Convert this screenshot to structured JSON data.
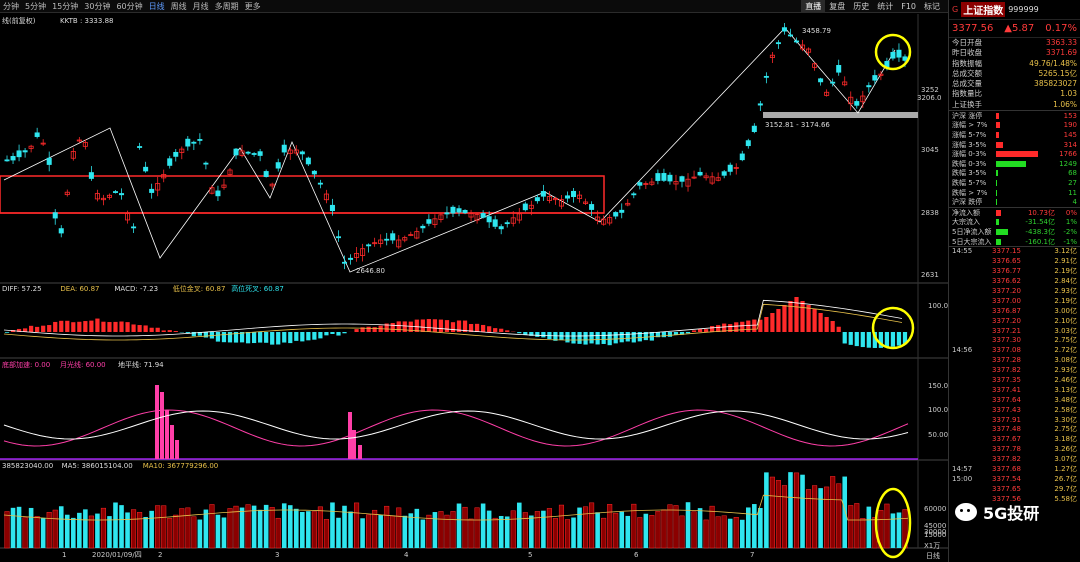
{
  "toolbar": {
    "periods": [
      "分钟",
      "5分钟",
      "15分钟",
      "30分钟",
      "60分钟",
      "日线",
      "周线",
      "月线",
      "多周期",
      "更多"
    ],
    "active_period": "日线",
    "tools": [
      "直播",
      "复盘",
      "历史",
      "统计",
      "F10",
      "标记"
    ]
  },
  "main": {
    "title_label": "线(前复权)",
    "ma_label": "KKTB : 3333.88",
    "right_axis": [
      "3252",
      "3206.0",
      "3045",
      "2838",
      "2631"
    ],
    "annotations": {
      "high": "3458.79",
      "low": "2646.80",
      "range": "3152.81 - 3174.66"
    }
  },
  "macd": {
    "legend": [
      "DIFF: 57.25",
      "DEA: 60.87",
      "MACD: -7.23",
      "低位金叉: 60.87",
      "高位死叉: 60.87"
    ],
    "axis": [
      "100.0"
    ]
  },
  "ind2": {
    "legend": [
      "底部加速: 0.00",
      "月光线: 60.00",
      "地平线: 71.94"
    ],
    "axis": [
      "150.0",
      "100.0",
      "50.00"
    ]
  },
  "vol": {
    "legend": [
      "385823040.00",
      "MA5: 386015104.00",
      "MA10: 367779296.00"
    ],
    "axis": [
      "60000",
      "45000",
      "30000",
      "15000",
      "X1万"
    ],
    "dates": [
      "1",
      "2020/01/09/四",
      "2",
      "3",
      "4",
      "5",
      "6",
      "7"
    ],
    "bottom_right": "日线"
  },
  "quote": {
    "g": "G",
    "name": "上证指数",
    "code": "999999",
    "price": "3377.56",
    "change": "▲5.87",
    "pct": "0.17%",
    "rows": [
      {
        "l": "今日开盘",
        "v": "3363.33"
      },
      {
        "l": "昨日收盘",
        "v": "3371.69"
      },
      {
        "l": "指数振幅",
        "v": "49.76/1.48%"
      },
      {
        "l": "总成交额",
        "v": "5265.15亿"
      },
      {
        "l": "总成交量",
        "v": "385823027"
      },
      {
        "l": "指数量比",
        "v": "1.03"
      },
      {
        "l": "上证换手",
        "v": "1.06%"
      }
    ],
    "dist": [
      {
        "l": "沪深 涨停",
        "v": "153",
        "w": 3,
        "c": "#ff2a2a"
      },
      {
        "l": "涨幅 > 7%",
        "v": "190",
        "w": 4,
        "c": "#ff2a2a"
      },
      {
        "l": "涨幅 5-7%",
        "v": "145",
        "w": 3,
        "c": "#ff2a2a"
      },
      {
        "l": "涨幅 3-5%",
        "v": "314",
        "w": 7,
        "c": "#ff2a2a"
      },
      {
        "l": "涨幅 0-3%",
        "v": "1766",
        "w": 42,
        "c": "#ff2a2a"
      },
      {
        "l": "跌幅 0-3%",
        "v": "1249",
        "w": 30,
        "c": "#22dd22"
      },
      {
        "l": "跌幅 3-5%",
        "v": "68",
        "w": 2,
        "c": "#22dd22"
      },
      {
        "l": "跌幅 5-7%",
        "v": "27",
        "w": 1,
        "c": "#22dd22"
      },
      {
        "l": "跌幅 > 7%",
        "v": "11",
        "w": 1,
        "c": "#22dd22"
      },
      {
        "l": "沪深 跌停",
        "v": "4",
        "w": 1,
        "c": "#22dd22"
      }
    ],
    "flows": [
      {
        "l": "净流入额",
        "v": "10.73亿",
        "p": "0%",
        "w": 5,
        "c": "#ff2a2a"
      },
      {
        "l": "大宗流入",
        "v": "-31.54亿",
        "p": "1%",
        "w": 3,
        "c": "#22dd22"
      },
      {
        "l": "5日净流入额",
        "v": "-438.3亿",
        "p": "-2%",
        "w": 12,
        "c": "#22dd22"
      },
      {
        "l": "5日大宗流入",
        "v": "-160.1亿",
        "p": "-1%",
        "w": 5,
        "c": "#22dd22"
      }
    ],
    "ticks": [
      {
        "t": "14:55",
        "p": "3377.15",
        "v": "3.12亿"
      },
      {
        "t": "",
        "p": "3376.65",
        "v": "2.91亿"
      },
      {
        "t": "",
        "p": "3376.77",
        "v": "2.19亿"
      },
      {
        "t": "",
        "p": "3376.62",
        "v": "2.84亿"
      },
      {
        "t": "",
        "p": "3377.20",
        "v": "2.93亿"
      },
      {
        "t": "",
        "p": "3377.00",
        "v": "2.19亿"
      },
      {
        "t": "",
        "p": "3376.87",
        "v": "3.00亿"
      },
      {
        "t": "",
        "p": "3377.20",
        "v": "2.10亿"
      },
      {
        "t": "",
        "p": "3377.21",
        "v": "3.03亿"
      },
      {
        "t": "",
        "p": "3377.30",
        "v": "2.75亿"
      },
      {
        "t": "14:56",
        "p": "3377.08",
        "v": "2.72亿"
      },
      {
        "t": "",
        "p": "3377.28",
        "v": "3.08亿"
      },
      {
        "t": "",
        "p": "3377.82",
        "v": "2.93亿"
      },
      {
        "t": "",
        "p": "3377.35",
        "v": "2.46亿"
      },
      {
        "t": "",
        "p": "3377.41",
        "v": "3.13亿"
      },
      {
        "t": "",
        "p": "3377.64",
        "v": "3.48亿"
      },
      {
        "t": "",
        "p": "3377.43",
        "v": "2.58亿"
      },
      {
        "t": "",
        "p": "3377.91",
        "v": "3.30亿"
      },
      {
        "t": "",
        "p": "3377.48",
        "v": "2.75亿"
      },
      {
        "t": "",
        "p": "3377.67",
        "v": "3.18亿"
      },
      {
        "t": "",
        "p": "3377.78",
        "v": "3.26亿"
      },
      {
        "t": "",
        "p": "3377.82",
        "v": "3.07亿"
      },
      {
        "t": "14:57",
        "p": "3377.68",
        "v": "1.27亿"
      },
      {
        "t": "15:00",
        "p": "3377.54",
        "v": "26.7亿"
      },
      {
        "t": "",
        "p": "3377.65",
        "v": "29.7亿"
      },
      {
        "t": "",
        "p": "3377.56",
        "v": "5.58亿"
      }
    ]
  },
  "watermark": "5G投研",
  "colors": {
    "up": "#ff2a2a",
    "down": "#2fe6ef",
    "pink": "#ff3fa8",
    "yellow": "#ffff00"
  }
}
